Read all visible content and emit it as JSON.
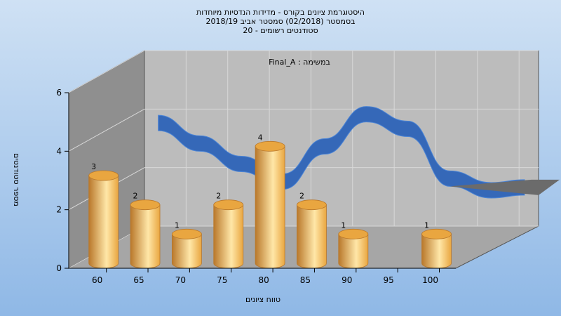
{
  "chart_data": {
    "type": "bar",
    "title_lines": [
      "היסטוגרמת ציונים בקורס - מדידות הנדסיות מיוחדות",
      "בסמסטר  (02/2018)  סמסטר אביב 2018/19",
      "סטודנטים רשומים - 20"
    ],
    "annotation": "במשימה : Final_A",
    "xlabel": "טווח ציונים",
    "ylabel": "מספר סטודנטים",
    "x_ticks": [
      "60",
      "65",
      "70",
      "75",
      "80",
      "85",
      "90",
      "95",
      "100"
    ],
    "y_ticks": [
      0,
      2,
      4,
      6
    ],
    "ylim": [
      0,
      6
    ],
    "grid": true,
    "legend": "none",
    "series": [
      {
        "kind": "bars",
        "x": [
          60,
          65,
          70,
          75,
          80,
          85,
          90,
          95,
          100
        ],
        "values": [
          3,
          2,
          1,
          2,
          4,
          2,
          1,
          0,
          1
        ]
      },
      {
        "kind": "curve",
        "x": [
          60,
          65,
          70,
          75,
          80,
          85,
          90,
          95,
          100,
          104
        ],
        "values": [
          3.5,
          2.8,
          2.1,
          1.5,
          2.7,
          3.8,
          3.3,
          1.6,
          1.2,
          1.3
        ]
      }
    ],
    "colors": {
      "bar": "#e9a640",
      "bar_light": "#ffe7a8",
      "bar_dark": "#b9782b",
      "curve": "#3568b8",
      "curve_light": "#4c85d6",
      "curve_shadow": "#6b6b6b",
      "wall_back": "#bcbcbc",
      "wall_side": "#8f8f8f",
      "floor": "#a6a6a6",
      "bg_top": "#cfe1f4",
      "bg_bottom": "#8fb8e6"
    }
  }
}
